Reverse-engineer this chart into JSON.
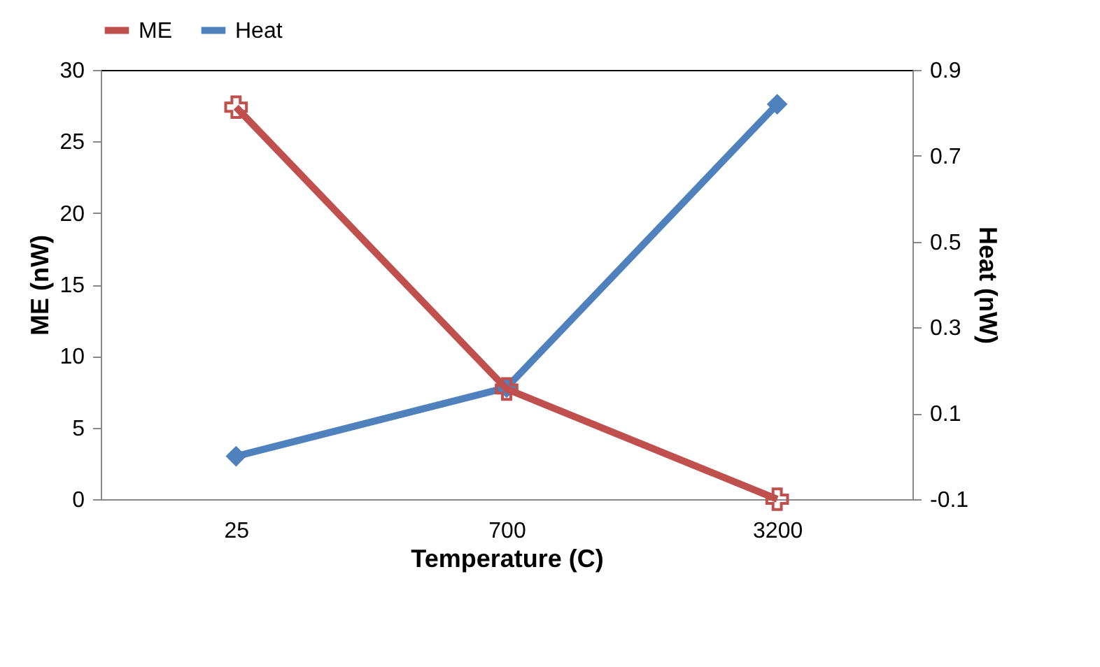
{
  "chart_data": {
    "type": "line",
    "xlabel": "Temperature  (C)",
    "ylabel": "ME (nW)",
    "y2label": "Heat (nW)",
    "categories": [
      "25",
      "700",
      "3200"
    ],
    "series": [
      {
        "name": "ME",
        "color": "#c0504d",
        "marker": "cross",
        "values": [
          27.4,
          7.7,
          0
        ]
      },
      {
        "name": "Heat",
        "color": "#4f81bd",
        "marker": "diamond",
        "axis": "y2",
        "values": [
          0.0,
          0.16,
          0.82
        ]
      }
    ],
    "ylim": [
      0,
      30
    ],
    "yticks": [
      0,
      5,
      10,
      15,
      20,
      25,
      30
    ],
    "y2lim": [
      -0.1,
      0.9
    ],
    "y2ticks": [
      -0.1,
      0.1,
      0.3,
      0.5,
      0.7,
      0.9
    ],
    "legend": "top",
    "grid": false
  }
}
